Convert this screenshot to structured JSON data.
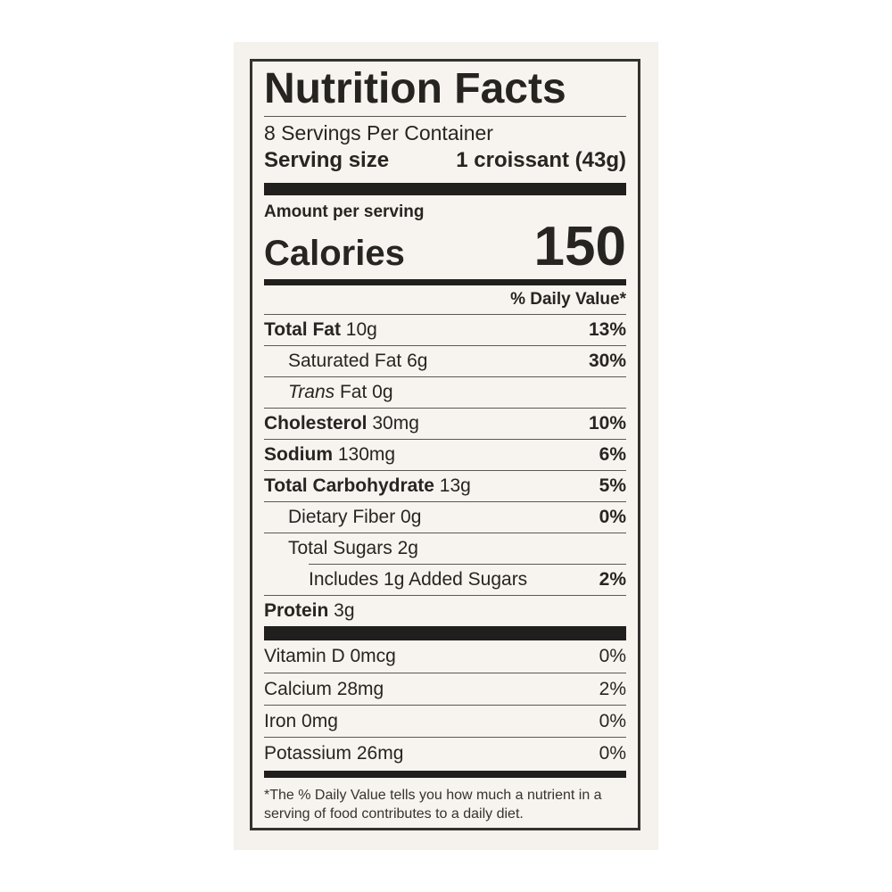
{
  "colors": {
    "page_bg": "#ffffff",
    "card_bg": "#f5f1ec",
    "label_bg": "#f7f3ee",
    "ink": "#262420",
    "bar": "#201f1d"
  },
  "label": {
    "title": "Nutrition Facts",
    "servings_per_container": "8 Servings Per Container",
    "serving_size_label": "Serving size",
    "serving_size_value": "1 croissant (43g)",
    "amount_per_serving": "Amount per serving",
    "calories_label": "Calories",
    "calories_value": "150",
    "daily_value_header": "% Daily Value*",
    "nutrients": [
      {
        "name": "Total Fat",
        "bold": true,
        "amount": "10g",
        "dv": "13%",
        "dv_bold": true,
        "indent": 0
      },
      {
        "name": "Saturated Fat",
        "bold": false,
        "amount": "6g",
        "dv": "30%",
        "dv_bold": true,
        "indent": 1
      },
      {
        "italic": "Trans",
        "name": "Fat",
        "bold": false,
        "amount": "0g",
        "dv": "",
        "indent": 1
      },
      {
        "name": "Cholesterol",
        "bold": true,
        "amount": "30mg",
        "dv": "10%",
        "dv_bold": true,
        "indent": 0
      },
      {
        "name": "Sodium",
        "bold": true,
        "amount": "130mg",
        "dv": "6%",
        "dv_bold": true,
        "indent": 0
      },
      {
        "name": "Total Carbohydrate",
        "bold": true,
        "amount": "13g",
        "dv": "5%",
        "dv_bold": true,
        "indent": 0
      },
      {
        "name": "Dietary Fiber",
        "bold": false,
        "amount": "0g",
        "dv": "0%",
        "dv_bold": true,
        "indent": 1
      },
      {
        "name": "Total Sugars",
        "bold": false,
        "amount": "2g",
        "dv": "",
        "indent": 1
      },
      {
        "name": "Includes 1g Added Sugars",
        "bold": false,
        "amount": "",
        "dv": "2%",
        "dv_bold": true,
        "indent": 2,
        "separator": "indent"
      },
      {
        "name": "Protein",
        "bold": true,
        "amount": "3g",
        "dv": "",
        "indent": 0
      }
    ],
    "vitamins": [
      {
        "name": "Vitamin D",
        "bold": false,
        "amount": "0mcg",
        "dv": "0%",
        "dv_bold": false,
        "indent": 0
      },
      {
        "name": "Calcium",
        "bold": false,
        "amount": "28mg",
        "dv": "2%",
        "dv_bold": false,
        "indent": 0
      },
      {
        "name": "Iron",
        "bold": false,
        "amount": "0mg",
        "dv": "0%",
        "dv_bold": false,
        "indent": 0
      },
      {
        "name": "Potassium",
        "bold": false,
        "amount": "26mg",
        "dv": "0%",
        "dv_bold": false,
        "indent": 0
      }
    ],
    "footnote": "*The % Daily Value tells you how much a nutrient in a serving of food contributes to a daily diet."
  }
}
